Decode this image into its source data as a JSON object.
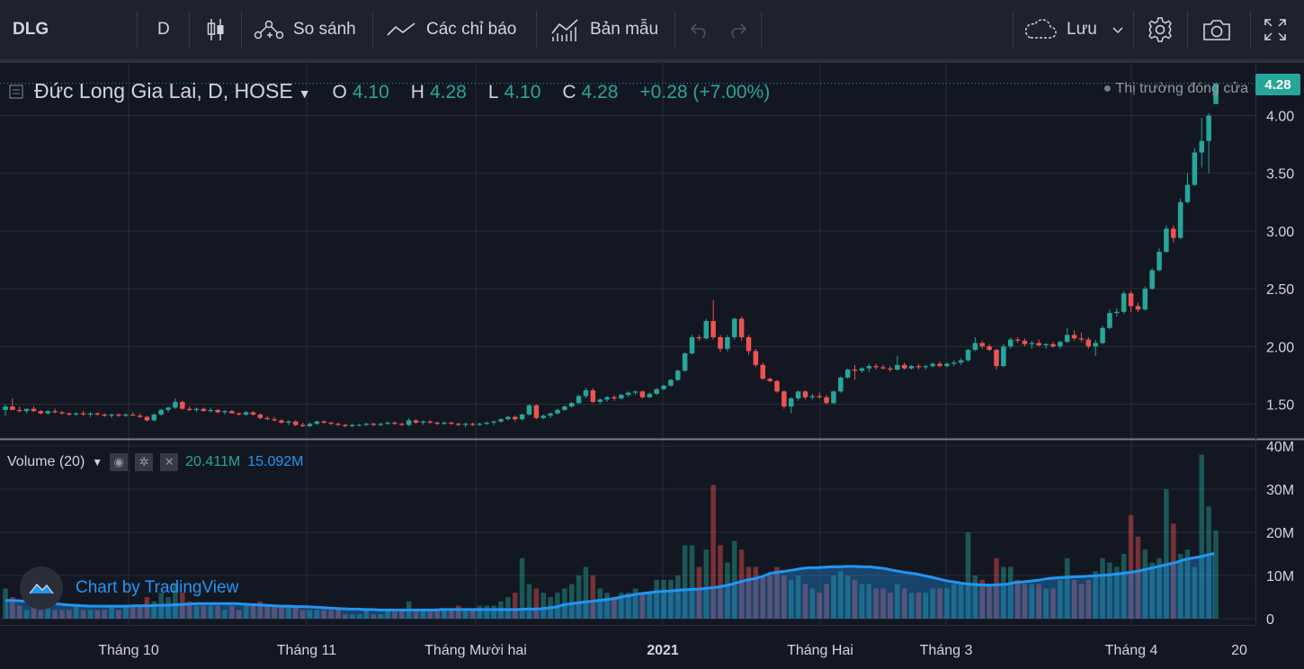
{
  "toolbar": {
    "symbol": "DLG",
    "interval": "D",
    "compare_label": "So sánh",
    "indicators_label": "Các chỉ báo",
    "templates_label": "Bản mẫu",
    "save_label": "Lưu"
  },
  "legend": {
    "title": "Đức Long Gia Lai, D, HOSE",
    "o_label": "O",
    "o_value": "4.10",
    "h_label": "H",
    "h_value": "4.28",
    "l_label": "L",
    "l_value": "4.10",
    "c_label": "C",
    "c_value": "4.28",
    "change": "+0.28 (+7.00%)",
    "market_status": "Thị trường đóng cửa",
    "last_price_tag": "4.28"
  },
  "volume_legend": {
    "label": "Volume (20)",
    "volume": "20.411M",
    "ma": "15.092M"
  },
  "watermark": "Chart by TradingView",
  "colors": {
    "up": "#26a69a",
    "down": "#ef5350",
    "ma_line": "#2196f3",
    "background": "#131722",
    "grid": "#2a2e39"
  },
  "chart_data": {
    "type": "candlestick",
    "price_axis": {
      "ylim": [
        1.2,
        4.3
      ],
      "ticks": [
        "4.00",
        "3.50",
        "3.00",
        "2.50",
        "2.00",
        "1.50"
      ]
    },
    "volume_axis": {
      "ylim": [
        0,
        40
      ],
      "unit": "M",
      "ticks": [
        "40M",
        "30M",
        "20M",
        "10M",
        "0"
      ]
    },
    "x_ticks": [
      "Tháng 10",
      "Tháng 11",
      "Tháng Mười hai",
      "2021",
      "Tháng Hai",
      "Tháng 3",
      "Tháng 4",
      "20"
    ],
    "candles": [
      [
        1.45,
        1.5,
        1.4,
        1.48,
        7
      ],
      [
        1.48,
        1.55,
        1.45,
        1.45,
        5
      ],
      [
        1.45,
        1.48,
        1.43,
        1.44,
        3
      ],
      [
        1.44,
        1.46,
        1.42,
        1.46,
        2
      ],
      [
        1.46,
        1.48,
        1.43,
        1.44,
        3
      ],
      [
        1.44,
        1.45,
        1.41,
        1.42,
        2
      ],
      [
        1.42,
        1.45,
        1.41,
        1.44,
        3
      ],
      [
        1.44,
        1.46,
        1.42,
        1.43,
        2
      ],
      [
        1.43,
        1.44,
        1.41,
        1.42,
        2
      ],
      [
        1.42,
        1.43,
        1.4,
        1.41,
        2
      ],
      [
        1.41,
        1.43,
        1.4,
        1.42,
        3
      ],
      [
        1.42,
        1.44,
        1.4,
        1.41,
        2
      ],
      [
        1.41,
        1.43,
        1.39,
        1.42,
        2
      ],
      [
        1.42,
        1.43,
        1.4,
        1.41,
        2
      ],
      [
        1.41,
        1.42,
        1.39,
        1.4,
        2
      ],
      [
        1.4,
        1.42,
        1.38,
        1.41,
        3
      ],
      [
        1.41,
        1.42,
        1.39,
        1.4,
        2
      ],
      [
        1.4,
        1.42,
        1.39,
        1.41,
        3
      ],
      [
        1.41,
        1.43,
        1.4,
        1.4,
        3
      ],
      [
        1.4,
        1.42,
        1.38,
        1.39,
        3
      ],
      [
        1.39,
        1.4,
        1.35,
        1.36,
        5
      ],
      [
        1.36,
        1.42,
        1.35,
        1.41,
        4
      ],
      [
        1.41,
        1.46,
        1.4,
        1.45,
        6
      ],
      [
        1.45,
        1.48,
        1.43,
        1.47,
        5
      ],
      [
        1.47,
        1.55,
        1.46,
        1.52,
        8
      ],
      [
        1.52,
        1.53,
        1.45,
        1.46,
        6
      ],
      [
        1.46,
        1.48,
        1.44,
        1.45,
        4
      ],
      [
        1.45,
        1.47,
        1.43,
        1.46,
        3
      ],
      [
        1.46,
        1.47,
        1.44,
        1.44,
        3
      ],
      [
        1.44,
        1.47,
        1.43,
        1.45,
        3
      ],
      [
        1.45,
        1.46,
        1.42,
        1.43,
        3
      ],
      [
        1.43,
        1.45,
        1.41,
        1.44,
        2
      ],
      [
        1.44,
        1.45,
        1.42,
        1.42,
        3
      ],
      [
        1.42,
        1.43,
        1.4,
        1.41,
        2
      ],
      [
        1.41,
        1.44,
        1.4,
        1.43,
        3
      ],
      [
        1.43,
        1.44,
        1.4,
        1.41,
        3
      ],
      [
        1.41,
        1.42,
        1.37,
        1.38,
        4
      ],
      [
        1.38,
        1.4,
        1.36,
        1.37,
        3
      ],
      [
        1.37,
        1.39,
        1.35,
        1.36,
        3
      ],
      [
        1.36,
        1.37,
        1.33,
        1.34,
        3
      ],
      [
        1.34,
        1.36,
        1.32,
        1.35,
        3
      ],
      [
        1.35,
        1.36,
        1.31,
        1.32,
        3
      ],
      [
        1.32,
        1.34,
        1.3,
        1.31,
        2
      ],
      [
        1.31,
        1.34,
        1.3,
        1.33,
        2
      ],
      [
        1.33,
        1.36,
        1.32,
        1.35,
        2
      ],
      [
        1.35,
        1.36,
        1.33,
        1.34,
        2
      ],
      [
        1.34,
        1.35,
        1.32,
        1.33,
        2
      ],
      [
        1.33,
        1.34,
        1.31,
        1.32,
        2
      ],
      [
        1.32,
        1.33,
        1.3,
        1.31,
        1
      ],
      [
        1.31,
        1.33,
        1.3,
        1.32,
        1
      ],
      [
        1.32,
        1.33,
        1.31,
        1.32,
        1
      ],
      [
        1.32,
        1.34,
        1.31,
        1.33,
        2
      ],
      [
        1.33,
        1.34,
        1.31,
        1.32,
        1
      ],
      [
        1.32,
        1.34,
        1.31,
        1.33,
        1
      ],
      [
        1.33,
        1.35,
        1.32,
        1.34,
        2
      ],
      [
        1.34,
        1.35,
        1.32,
        1.33,
        2
      ],
      [
        1.33,
        1.34,
        1.31,
        1.32,
        2
      ],
      [
        1.32,
        1.38,
        1.31,
        1.36,
        4
      ],
      [
        1.36,
        1.37,
        1.33,
        1.34,
        2
      ],
      [
        1.34,
        1.36,
        1.32,
        1.35,
        2
      ],
      [
        1.35,
        1.36,
        1.33,
        1.34,
        2
      ],
      [
        1.34,
        1.35,
        1.32,
        1.33,
        2
      ],
      [
        1.33,
        1.35,
        1.32,
        1.34,
        2
      ],
      [
        1.34,
        1.35,
        1.32,
        1.33,
        2
      ],
      [
        1.33,
        1.34,
        1.31,
        1.32,
        3
      ],
      [
        1.32,
        1.34,
        1.3,
        1.33,
        2
      ],
      [
        1.33,
        1.34,
        1.31,
        1.32,
        2
      ],
      [
        1.32,
        1.34,
        1.31,
        1.33,
        3
      ],
      [
        1.33,
        1.35,
        1.32,
        1.34,
        3
      ],
      [
        1.34,
        1.36,
        1.32,
        1.35,
        3
      ],
      [
        1.35,
        1.38,
        1.34,
        1.37,
        4
      ],
      [
        1.37,
        1.4,
        1.36,
        1.39,
        5
      ],
      [
        1.39,
        1.4,
        1.35,
        1.37,
        6
      ],
      [
        1.37,
        1.42,
        1.36,
        1.41,
        14
      ],
      [
        1.41,
        1.5,
        1.4,
        1.49,
        8
      ],
      [
        1.49,
        1.5,
        1.37,
        1.38,
        7
      ],
      [
        1.38,
        1.41,
        1.37,
        1.4,
        6
      ],
      [
        1.4,
        1.43,
        1.38,
        1.42,
        5
      ],
      [
        1.42,
        1.46,
        1.41,
        1.45,
        6
      ],
      [
        1.45,
        1.49,
        1.44,
        1.48,
        7
      ],
      [
        1.48,
        1.52,
        1.47,
        1.51,
        8
      ],
      [
        1.51,
        1.58,
        1.5,
        1.57,
        10
      ],
      [
        1.57,
        1.64,
        1.55,
        1.62,
        12
      ],
      [
        1.62,
        1.64,
        1.51,
        1.52,
        10
      ],
      [
        1.52,
        1.55,
        1.5,
        1.54,
        7
      ],
      [
        1.54,
        1.57,
        1.52,
        1.56,
        6
      ],
      [
        1.56,
        1.58,
        1.53,
        1.55,
        5
      ],
      [
        1.55,
        1.59,
        1.54,
        1.58,
        6
      ],
      [
        1.58,
        1.61,
        1.56,
        1.6,
        6
      ],
      [
        1.6,
        1.62,
        1.58,
        1.61,
        7
      ],
      [
        1.61,
        1.62,
        1.55,
        1.56,
        6
      ],
      [
        1.56,
        1.6,
        1.55,
        1.59,
        6
      ],
      [
        1.59,
        1.64,
        1.58,
        1.63,
        9
      ],
      [
        1.63,
        1.67,
        1.62,
        1.66,
        9
      ],
      [
        1.66,
        1.72,
        1.65,
        1.71,
        9
      ],
      [
        1.71,
        1.8,
        1.7,
        1.79,
        10
      ],
      [
        1.79,
        1.95,
        1.78,
        1.94,
        17
      ],
      [
        1.94,
        2.1,
        1.93,
        2.08,
        17
      ],
      [
        2.08,
        2.1,
        2.05,
        2.07,
        12
      ],
      [
        2.07,
        2.24,
        2.06,
        2.22,
        16
      ],
      [
        2.22,
        2.4,
        2.06,
        2.08,
        31
      ],
      [
        2.08,
        2.1,
        1.95,
        1.98,
        17
      ],
      [
        1.98,
        2.1,
        1.96,
        2.08,
        13
      ],
      [
        2.08,
        2.25,
        2.06,
        2.24,
        18
      ],
      [
        2.24,
        2.26,
        2.05,
        2.08,
        16
      ],
      [
        2.08,
        2.1,
        1.93,
        1.96,
        12
      ],
      [
        1.96,
        1.98,
        1.82,
        1.84,
        12
      ],
      [
        1.84,
        1.86,
        1.71,
        1.72,
        10
      ],
      [
        1.72,
        1.73,
        1.69,
        1.7,
        10
      ],
      [
        1.7,
        1.71,
        1.6,
        1.61,
        12
      ],
      [
        1.61,
        1.62,
        1.46,
        1.48,
        10
      ],
      [
        1.48,
        1.56,
        1.42,
        1.55,
        9
      ],
      [
        1.55,
        1.62,
        1.53,
        1.61,
        10
      ],
      [
        1.61,
        1.62,
        1.54,
        1.56,
        8
      ],
      [
        1.56,
        1.59,
        1.54,
        1.57,
        7
      ],
      [
        1.57,
        1.6,
        1.55,
        1.56,
        6
      ],
      [
        1.56,
        1.58,
        1.5,
        1.51,
        8
      ],
      [
        1.51,
        1.62,
        1.5,
        1.61,
        10
      ],
      [
        1.61,
        1.74,
        1.6,
        1.73,
        11
      ],
      [
        1.73,
        1.81,
        1.72,
        1.8,
        10
      ],
      [
        1.8,
        1.84,
        1.71,
        1.79,
        9
      ],
      [
        1.79,
        1.82,
        1.77,
        1.81,
        8
      ],
      [
        1.81,
        1.85,
        1.78,
        1.83,
        8
      ],
      [
        1.83,
        1.85,
        1.8,
        1.82,
        7
      ],
      [
        1.82,
        1.84,
        1.8,
        1.81,
        7
      ],
      [
        1.81,
        1.83,
        1.78,
        1.8,
        6
      ],
      [
        1.8,
        1.92,
        1.79,
        1.84,
        8
      ],
      [
        1.84,
        1.86,
        1.8,
        1.81,
        7
      ],
      [
        1.81,
        1.84,
        1.8,
        1.83,
        6
      ],
      [
        1.83,
        1.85,
        1.8,
        1.82,
        6
      ],
      [
        1.82,
        1.84,
        1.8,
        1.83,
        6
      ],
      [
        1.83,
        1.86,
        1.82,
        1.85,
        7
      ],
      [
        1.85,
        1.87,
        1.82,
        1.83,
        7
      ],
      [
        1.83,
        1.86,
        1.82,
        1.85,
        7
      ],
      [
        1.85,
        1.88,
        1.83,
        1.86,
        8
      ],
      [
        1.86,
        1.9,
        1.84,
        1.88,
        8
      ],
      [
        1.88,
        1.98,
        1.87,
        1.97,
        20
      ],
      [
        1.97,
        2.08,
        1.96,
        2.03,
        10
      ],
      [
        2.03,
        2.05,
        1.98,
        2.0,
        9
      ],
      [
        2.0,
        2.02,
        1.96,
        1.97,
        8
      ],
      [
        1.97,
        1.98,
        1.8,
        1.83,
        14
      ],
      [
        1.83,
        2.02,
        1.82,
        2.0,
        12
      ],
      [
        2.0,
        2.08,
        1.98,
        2.06,
        12
      ],
      [
        2.06,
        2.08,
        2.03,
        2.05,
        9
      ],
      [
        2.05,
        2.07,
        2.0,
        2.02,
        8
      ],
      [
        2.02,
        2.05,
        1.98,
        2.03,
        8
      ],
      [
        2.03,
        2.06,
        2.0,
        2.01,
        8
      ],
      [
        2.01,
        2.03,
        1.98,
        2.02,
        7
      ],
      [
        2.02,
        2.04,
        1.99,
        2.0,
        7
      ],
      [
        2.0,
        2.05,
        1.98,
        2.04,
        9
      ],
      [
        2.04,
        2.16,
        2.03,
        2.1,
        14
      ],
      [
        2.1,
        2.14,
        2.05,
        2.07,
        9
      ],
      [
        2.07,
        2.12,
        2.04,
        2.06,
        8
      ],
      [
        2.06,
        2.08,
        1.98,
        2.0,
        9
      ],
      [
        2.0,
        2.06,
        1.92,
        2.03,
        11
      ],
      [
        2.03,
        2.18,
        2.02,
        2.16,
        14
      ],
      [
        2.16,
        2.32,
        2.15,
        2.29,
        13
      ],
      [
        2.29,
        2.33,
        2.26,
        2.3,
        12
      ],
      [
        2.3,
        2.48,
        2.28,
        2.46,
        15
      ],
      [
        2.46,
        2.48,
        2.3,
        2.35,
        24
      ],
      [
        2.35,
        2.38,
        2.3,
        2.32,
        19
      ],
      [
        2.32,
        2.52,
        2.31,
        2.5,
        16
      ],
      [
        2.5,
        2.68,
        2.49,
        2.66,
        13
      ],
      [
        2.66,
        2.85,
        2.65,
        2.82,
        14
      ],
      [
        2.82,
        3.05,
        2.81,
        3.02,
        30
      ],
      [
        3.02,
        3.05,
        2.9,
        2.94,
        22
      ],
      [
        2.94,
        3.28,
        2.93,
        3.25,
        15
      ],
      [
        3.25,
        3.5,
        3.24,
        3.4,
        16
      ],
      [
        3.4,
        3.72,
        3.39,
        3.68,
        12
      ],
      [
        3.68,
        3.98,
        3.55,
        3.78,
        38
      ],
      [
        3.78,
        4.02,
        3.5,
        4.0,
        26
      ],
      [
        4.1,
        4.28,
        4.1,
        4.28,
        20.4
      ]
    ],
    "ma_volume": [
      4.2,
      4.2,
      4.1,
      4.0,
      3.9,
      3.8,
      3.6,
      3.4,
      3.2,
      3.1,
      3.0,
      2.9,
      2.9,
      2.9,
      2.9,
      2.9,
      2.9,
      3.0,
      3.0,
      3.0,
      3.1,
      3.1,
      3.2,
      3.3,
      3.4,
      3.5,
      3.5,
      3.5,
      3.5,
      3.5,
      3.5,
      3.4,
      3.3,
      3.2,
      3.1,
      3.0,
      2.9,
      2.9,
      2.8,
      2.8,
      2.7,
      2.6,
      2.5,
      2.4,
      2.3,
      2.2,
      2.2,
      2.1,
      2.1,
      2.0,
      2.0,
      2.0,
      2.0,
      2.0,
      2.0,
      2.0,
      2.0,
      2.1,
      2.1,
      2.1,
      2.1,
      2.1,
      2.1,
      2.1,
      2.1,
      2.1,
      2.1,
      2.1,
      2.2,
      2.2,
      2.3,
      2.5,
      2.7,
      3.2,
      3.5,
      3.7,
      3.9,
      4.1,
      4.3,
      4.5,
      4.8,
      5.2,
      5.5,
      5.8,
      6.0,
      6.2,
      6.3,
      6.4,
      6.6,
      6.7,
      6.8,
      6.9,
      7.1,
      7.3,
      7.6,
      8.0,
      8.5,
      9.0,
      9.3,
      9.8,
      10.5,
      10.8,
      11.0,
      11.3,
      11.6,
      11.8,
      11.8,
      11.9,
      12.0,
      12.0,
      12.1,
      12.1,
      12.0,
      12.0,
      11.8,
      11.6,
      11.2,
      10.9,
      10.6,
      10.4,
      10.0,
      9.6,
      9.2,
      8.8,
      8.5,
      8.2,
      8.0,
      7.9,
      7.8,
      7.8,
      7.9,
      8.0,
      8.4,
      8.5,
      8.7,
      8.9,
      9.2,
      9.4,
      9.5,
      9.6,
      9.7,
      9.8,
      9.9,
      10.0,
      10.1,
      10.3,
      10.5,
      10.7,
      11.0,
      11.4,
      11.8,
      12.2,
      12.6,
      13.0,
      13.6,
      14.0,
      14.3,
      14.7,
      15.1
    ]
  }
}
